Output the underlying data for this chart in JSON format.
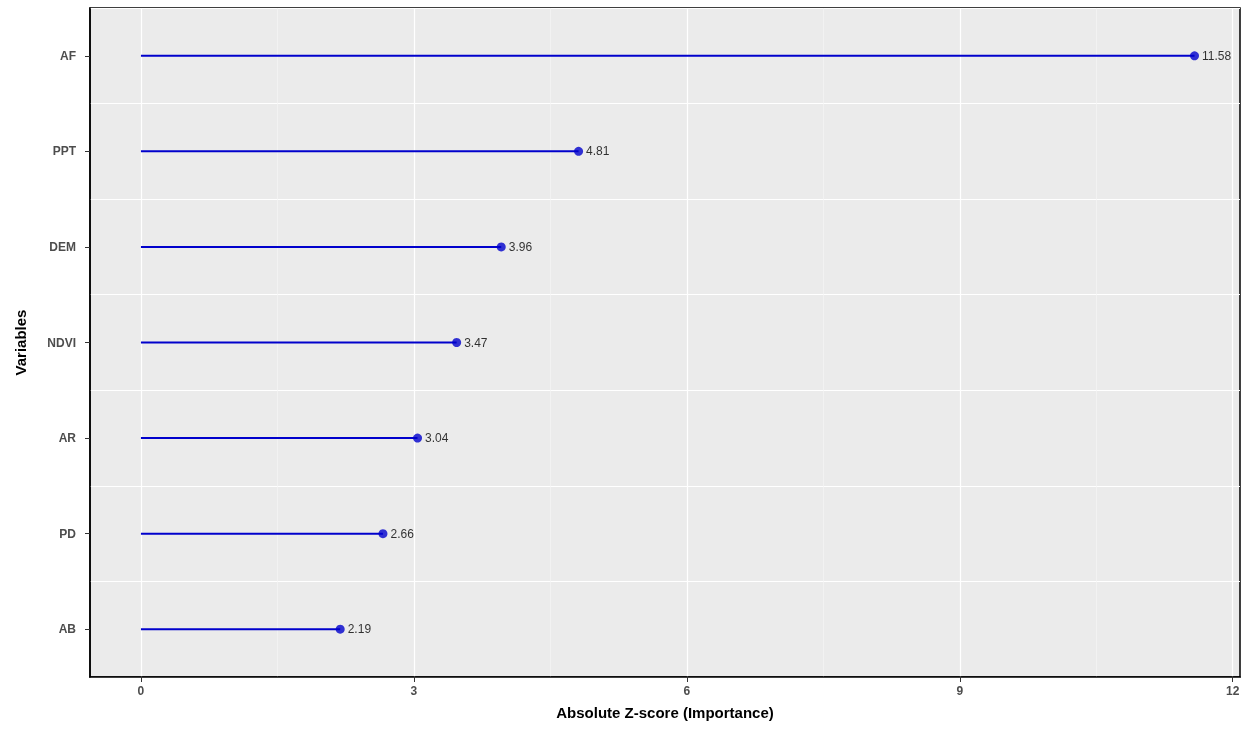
{
  "chart_data": {
    "type": "lollipop",
    "orientation": "horizontal",
    "xlabel": "Absolute Z-score (Importance)",
    "ylabel": "Variables",
    "categories": [
      "AF",
      "PPT",
      "DEM",
      "NDVI",
      "AR",
      "PD",
      "AB"
    ],
    "values": [
      11.58,
      4.81,
      3.96,
      3.47,
      3.04,
      2.66,
      2.19
    ],
    "color": "#0000cc",
    "data_labels": true,
    "marker": "circle",
    "grid": true,
    "xlim": [
      -0.56,
      12.08
    ],
    "xticks": [
      0,
      3,
      6,
      9,
      12
    ]
  }
}
